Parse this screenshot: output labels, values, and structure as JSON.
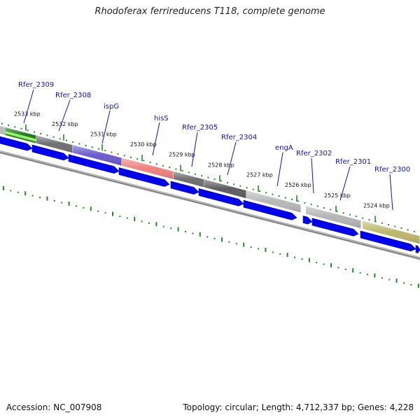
{
  "title": "Rhodoferax ferrireducens T118, complete genome",
  "footer": {
    "accession": "Accession: NC_007908",
    "summary": "Topology: circular; Length: 4,712,337 bp; Genes: 4,228"
  },
  "ticks": [
    "2533 kbp",
    "2532 kbp",
    "2531 kbp",
    "2530 kbp",
    "2529 kbp",
    "2528 kbp",
    "2527 kbp",
    "2526 kbp",
    "2525 kbp",
    "2524 kbp"
  ],
  "genes": [
    {
      "label": "Rfer_2309",
      "color": "#1a7a1a"
    },
    {
      "label": "Rfer_2308",
      "color": "#707070"
    },
    {
      "label": "ispG",
      "color": "#6a5acd"
    },
    {
      "label": "hisS",
      "color": "#f08080"
    },
    {
      "label": "Rfer_2305",
      "color": "#6e6e6e"
    },
    {
      "label": "Rfer_2304",
      "color": "#5e5e5e"
    },
    {
      "label": "engA",
      "color": "#b8b8b8"
    },
    {
      "label": "Rfer_2302",
      "color": "#b4b4b4"
    },
    {
      "label": "Rfer_2301",
      "color": "#b4b4b4"
    },
    {
      "label": "Rfer_2300",
      "color": "#bdb76b"
    }
  ],
  "colors": {
    "cds_arrow": "#0000ee",
    "backbone": "#888888",
    "tick": "#228b22",
    "label": "#1010c0"
  }
}
